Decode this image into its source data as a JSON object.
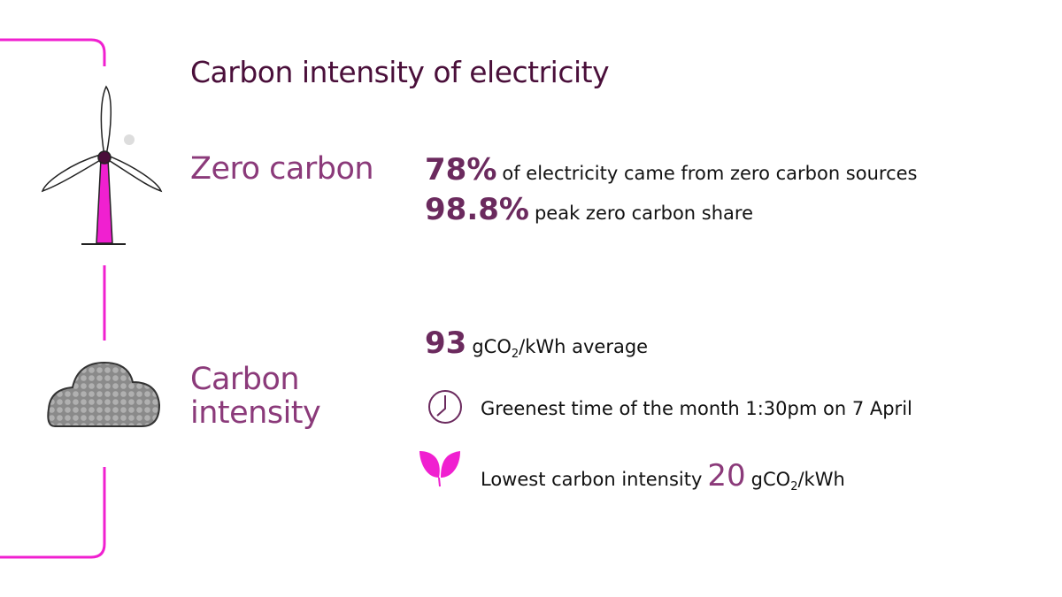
{
  "title": "Carbon intensity of electricity",
  "zero_carbon": {
    "label": "Zero carbon",
    "stats": [
      {
        "value": "78%",
        "text": "of electricity came from zero carbon sources"
      },
      {
        "value": "98.8%",
        "text": "peak zero carbon share"
      }
    ]
  },
  "carbon_intensity": {
    "label": "Carbon intensity",
    "average": {
      "value": "93",
      "unit": "gCO",
      "sub": "2",
      "unit_tail": "/kWh average"
    },
    "greenest": {
      "text": "Greenest time of the month 1:30pm on 7 April"
    },
    "lowest": {
      "text": "Lowest carbon intensity",
      "value": "20",
      "unit": "gCO",
      "sub": "2",
      "unit_tail": "/kWh"
    }
  }
}
